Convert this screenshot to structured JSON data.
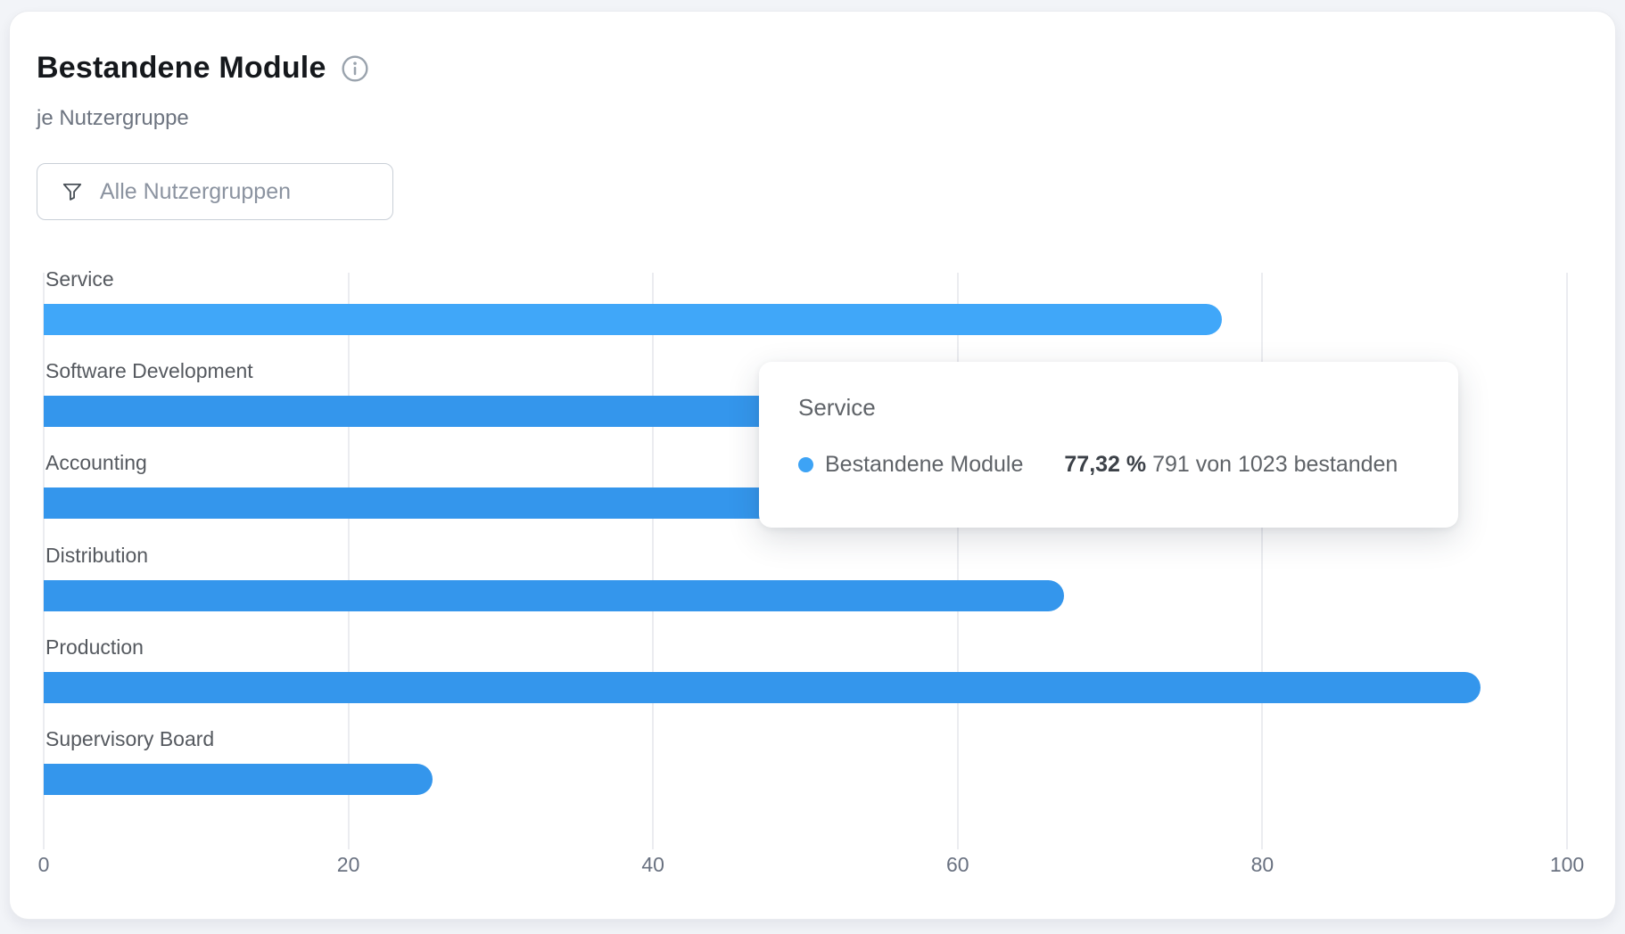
{
  "header": {
    "title": "Bestandene Module",
    "subtitle": "je Nutzergruppe"
  },
  "filter": {
    "placeholder": "Alle Nutzergruppen",
    "icon": "funnel-icon"
  },
  "icons": {
    "info": "info-icon",
    "series_marker": "dot-icon"
  },
  "chart_data": {
    "type": "bar",
    "orientation": "horizontal",
    "series_name": "Bestandene Module",
    "categories": [
      "Service",
      "Software Development",
      "Accounting",
      "Distribution",
      "Production",
      "Supervisory Board"
    ],
    "values": [
      77.32,
      70,
      68,
      67,
      94.3,
      25.5
    ],
    "values_note": "Software Development and Accounting bar ends are occluded by the tooltip; those two values are estimates (>47, <93)",
    "xlim": [
      0,
      100
    ],
    "x_ticks": [
      0,
      20,
      40,
      60,
      80,
      100
    ],
    "grid": true,
    "legend": false,
    "highlighted_category": "Service"
  },
  "tooltip": {
    "title": "Service",
    "series": "Bestandene Module",
    "percent": "77,32 %",
    "detail": "791 von 1023 bestanden"
  },
  "colors": {
    "bar": "#3496ec",
    "bar_highlight": "#40a7f9",
    "tooltip_dot": "#3da3f5",
    "gridline": "#ebecf0",
    "page_background": "#f2f4f8"
  }
}
